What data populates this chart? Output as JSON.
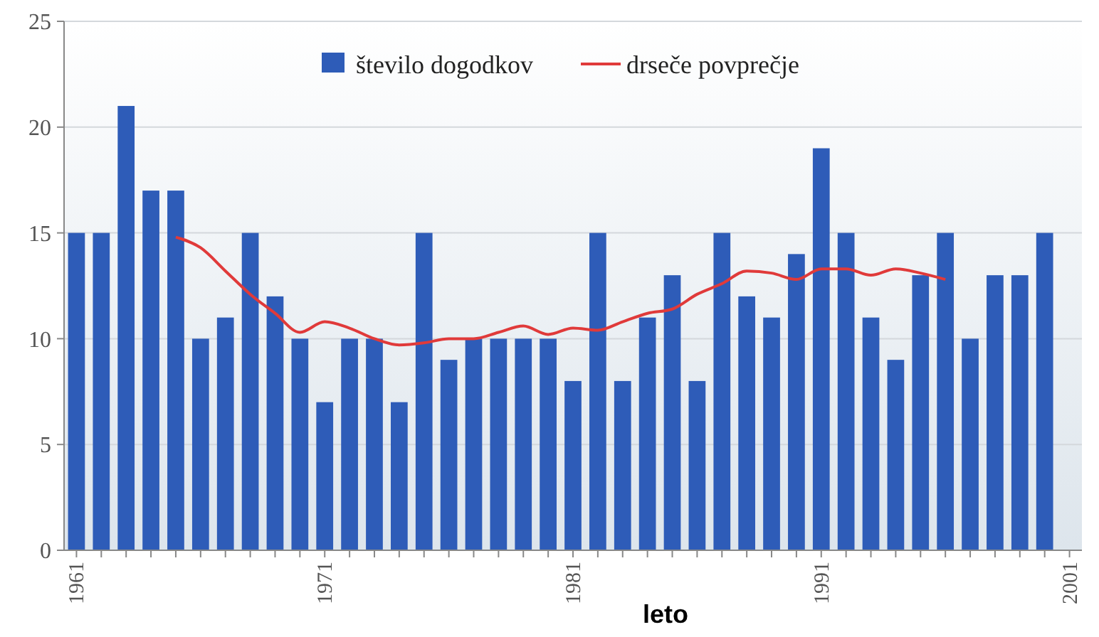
{
  "chart_data": {
    "type": "bar",
    "xlabel": "leto",
    "categories": [
      "1961",
      null,
      null,
      null,
      null,
      null,
      null,
      null,
      null,
      null,
      "1971",
      null,
      null,
      null,
      null,
      null,
      null,
      null,
      null,
      null,
      "1981",
      null,
      null,
      null,
      null,
      null,
      null,
      null,
      null,
      null,
      "1991",
      null,
      null,
      null,
      null,
      null,
      null,
      null,
      null,
      null,
      "2001"
    ],
    "series": [
      {
        "name": "število dogodkov",
        "color": "#2e5cb8",
        "values": [
          15,
          15,
          21,
          17,
          17,
          10,
          11,
          15,
          12,
          10,
          7,
          10,
          10,
          7,
          15,
          9,
          10,
          10,
          10,
          10,
          8,
          15,
          8,
          11,
          13,
          8,
          15,
          12,
          11,
          14,
          19,
          15,
          11,
          9,
          13,
          15,
          10,
          13,
          13,
          15,
          null
        ]
      },
      {
        "name": "drseče povprečje",
        "type": "line",
        "color": "#e03a3a",
        "values": [
          null,
          null,
          null,
          null,
          14.8,
          14.3,
          13.2,
          12.1,
          11.2,
          10.3,
          10.8,
          10.5,
          10.0,
          9.7,
          9.8,
          10.0,
          10.0,
          10.3,
          10.6,
          10.2,
          10.5,
          10.4,
          10.8,
          11.2,
          11.4,
          12.1,
          12.6,
          13.2,
          13.1,
          12.8,
          13.3,
          13.3,
          13.0,
          13.3,
          13.1,
          12.8,
          null,
          null,
          null,
          null,
          null
        ]
      }
    ],
    "ylim": [
      0,
      25
    ],
    "yticks": [
      0,
      5,
      10,
      15,
      20,
      25
    ],
    "grid": "y",
    "legend": "top",
    "line_style": "solid"
  }
}
